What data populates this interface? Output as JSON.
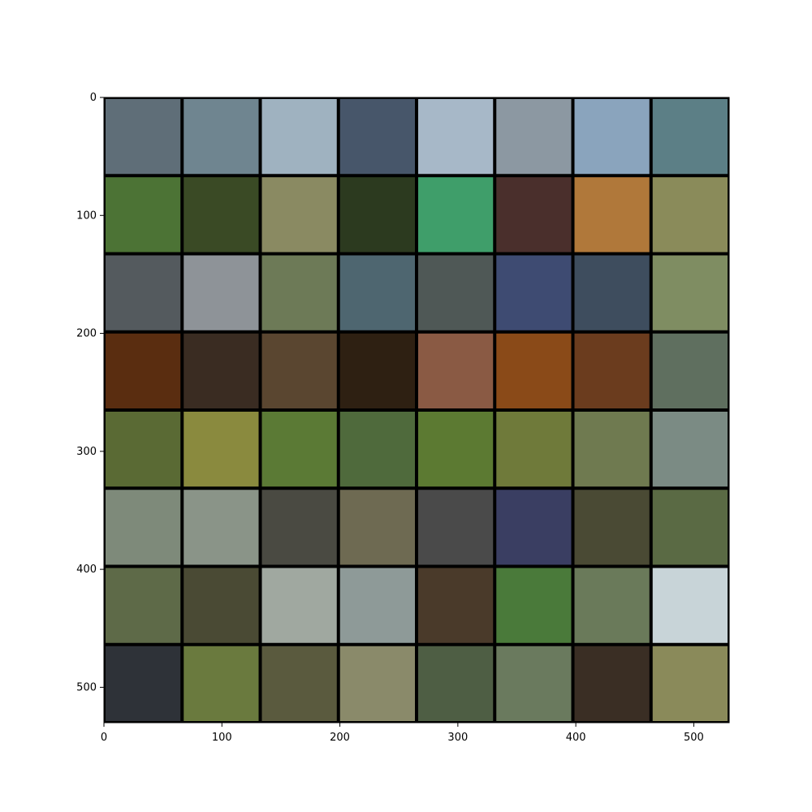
{
  "x_axis": {
    "range": [
      0,
      530
    ],
    "ticks": [
      0,
      100,
      200,
      300,
      400,
      500
    ],
    "tick_labels": [
      "0",
      "100",
      "200",
      "300",
      "400",
      "500"
    ]
  },
  "y_axis": {
    "range": [
      0,
      530
    ],
    "inverted": true,
    "ticks": [
      0,
      100,
      200,
      300,
      400,
      500
    ],
    "tick_labels": [
      "0",
      "100",
      "200",
      "300",
      "400",
      "500"
    ]
  },
  "grid": {
    "rows": 8,
    "cols": 8,
    "background_color": "#000000",
    "tiles": [
      [
        "#5f6e78",
        "#6f8590",
        "#9fb2c0",
        "#47566a",
        "#a7b8c8",
        "#8c98a2",
        "#8aa4bd",
        "#5c7f86"
      ],
      [
        "#4c7335",
        "#3a4a25",
        "#8a8a62",
        "#2c3a1f",
        "#3f9e6a",
        "#4a2f2c",
        "#b0783a",
        "#8a8b5a"
      ],
      [
        "#545a5e",
        "#8e9398",
        "#6d7a57",
        "#4e6670",
        "#4f5856",
        "#3e4b72",
        "#3e4d5e",
        "#7f8d62"
      ],
      [
        "#5a2d10",
        "#3a2c22",
        "#5a4630",
        "#2e2012",
        "#8a5a44",
        "#8a4a18",
        "#6b3c1e",
        "#5f6f5f"
      ],
      [
        "#5a6a34",
        "#8a8a3e",
        "#5b7a35",
        "#4f6a3c",
        "#5c7a32",
        "#6f7a3a",
        "#6f7a50",
        "#7b8b84"
      ],
      [
        "#7e8a7a",
        "#8a9488",
        "#4a4a42",
        "#6e6a52",
        "#4a4a4a",
        "#3a3e62",
        "#4a4a34",
        "#5a6a44"
      ],
      [
        "#5e6a48",
        "#4a4a34",
        "#a0a8a0",
        "#8e9a98",
        "#4a3a2a",
        "#4a7a3a",
        "#6a7a5a",
        "#c8d4d8"
      ],
      [
        "#2e3238",
        "#6a7a3e",
        "#5a5a3e",
        "#8a8a6a",
        "#4e5e44",
        "#6a7a5e",
        "#3a2e24",
        "#8a8a5a"
      ]
    ]
  }
}
